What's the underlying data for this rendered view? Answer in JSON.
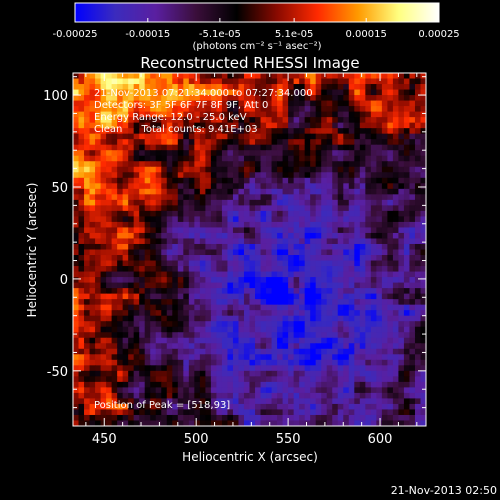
{
  "colors": {
    "background": "#000000",
    "text": "#ffffff",
    "colormap": [
      "#0000ff",
      "#3b2bbd",
      "#5a1fa0",
      "#3a0e3a",
      "#000000",
      "#8a0a00",
      "#ff2a00",
      "#ff9a00",
      "#ffff80",
      "#ffffff"
    ]
  },
  "colorbar": {
    "tick_labels": [
      "-0.00025",
      "-0.00015",
      "-5.1e-05",
      "5.1e-05",
      "0.00015",
      "0.00025"
    ],
    "unit_label": "(photons cm⁻² s⁻¹ asec⁻²)",
    "range": [
      -0.00025,
      0.00025
    ]
  },
  "annotations": {
    "time_range": "21-Nov-2013 07:21:34.000 to 07:27:34.000",
    "detectors": "Detectors: 3F 5F 6F 7F 8F 9F, Att 0",
    "energy": "Energy Range: 12.0 - 25.0 keV",
    "clean": "Clean      Total counts: 9.41E+03",
    "peak": "Position of Peak = [518,93]"
  },
  "timestamp": "21-Nov-2013 02:50",
  "chart_data": {
    "type": "heatmap",
    "title": "Reconstructed RHESSI Image",
    "xlabel": "Heliocentric X (arcsec)",
    "ylabel": "Heliocentric Y (arcsec)",
    "xlim": [
      433,
      625
    ],
    "ylim": [
      -80,
      112
    ],
    "x_ticks": [
      450,
      500,
      550,
      600
    ],
    "x_tick_labels": [
      "450",
      "500",
      "550",
      "600"
    ],
    "y_ticks": [
      -50,
      0,
      50,
      100
    ],
    "y_tick_labels": [
      "-50",
      "0",
      "50",
      "100"
    ],
    "peak_position": [
      518,
      93
    ]
  }
}
